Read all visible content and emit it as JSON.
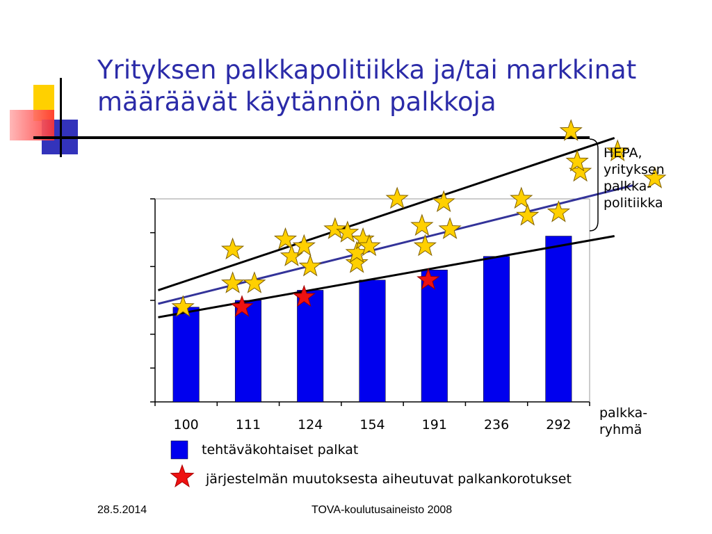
{
  "slide": {
    "title_line1": "Yrityksen palkkapolitiikka ja/tai markkinat",
    "title_line2": "määräävät  käytännön palkkoja",
    "footer_date": "28.5.2014",
    "footer_source": "TOVA-koulutusaineisto 2008"
  },
  "labels": {
    "hepa_lines": [
      "HEPA,",
      "yrityksen",
      "palkka-",
      "politiikka"
    ],
    "xaxis_lines": [
      "palkka-",
      "ryhmä"
    ]
  },
  "colors": {
    "title": "#2b2ba8",
    "bar": "#0000ee",
    "trend_line": "#333399",
    "star_gold": "#ffd000",
    "star_red": "#ee1111"
  },
  "chart_data": {
    "type": "bar",
    "categories": [
      "100",
      "111",
      "124",
      "154",
      "191",
      "236",
      "292"
    ],
    "series": [
      {
        "name": "tehtäväkohtaiset palkat",
        "values": [
          2.8,
          3.0,
          3.3,
          3.6,
          3.9,
          4.3,
          4.9
        ]
      }
    ],
    "markers": [
      {
        "name": "järjestelmän muutoksesta aiheutuvat palkankorotukset",
        "color": "red",
        "points": [
          [
            0.9,
            2.8
          ],
          [
            1.9,
            3.1
          ],
          [
            3.9,
            3.6
          ]
        ]
      },
      {
        "color": "gold",
        "points": [
          [
            -0.05,
            2.8
          ],
          [
            0.75,
            3.5
          ],
          [
            0.75,
            4.5
          ],
          [
            1.1,
            3.5
          ],
          [
            1.6,
            4.8
          ],
          [
            1.7,
            4.3
          ],
          [
            1.9,
            4.6
          ],
          [
            2.0,
            4.0
          ],
          [
            2.4,
            5.1
          ],
          [
            2.6,
            5.0
          ],
          [
            2.75,
            4.1
          ],
          [
            2.75,
            4.4
          ],
          [
            2.85,
            4.8
          ],
          [
            2.95,
            4.6
          ],
          [
            3.4,
            6.0
          ],
          [
            3.8,
            5.2
          ],
          [
            3.85,
            4.6
          ],
          [
            4.15,
            5.9
          ],
          [
            4.25,
            5.1
          ],
          [
            5.4,
            6.0
          ],
          [
            5.5,
            5.5
          ],
          [
            6.0,
            5.6
          ],
          [
            6.2,
            8.0
          ],
          [
            6.35,
            6.8
          ],
          [
            6.3,
            7.1
          ],
          [
            6.95,
            7.4
          ],
          [
            7.55,
            6.6
          ]
        ]
      }
    ],
    "lines": [
      {
        "name": "upper",
        "from": [
          -0.45,
          3.3
        ],
        "to": [
          6.9,
          7.8
        ]
      },
      {
        "name": "middle",
        "from": [
          -0.45,
          2.9
        ],
        "to": [
          7.2,
          6.4
        ]
      },
      {
        "name": "lower",
        "from": [
          -0.45,
          2.5
        ],
        "to": [
          6.9,
          4.9
        ]
      }
    ],
    "legend": [
      "tehtäväkohtaiset palkat",
      "järjestelmän muutoksesta aiheutuvat palkankorotukset"
    ],
    "xlabel": "palkka-ryhmä",
    "ylim": [
      0,
      6
    ],
    "yticks": 6,
    "grid": false
  }
}
